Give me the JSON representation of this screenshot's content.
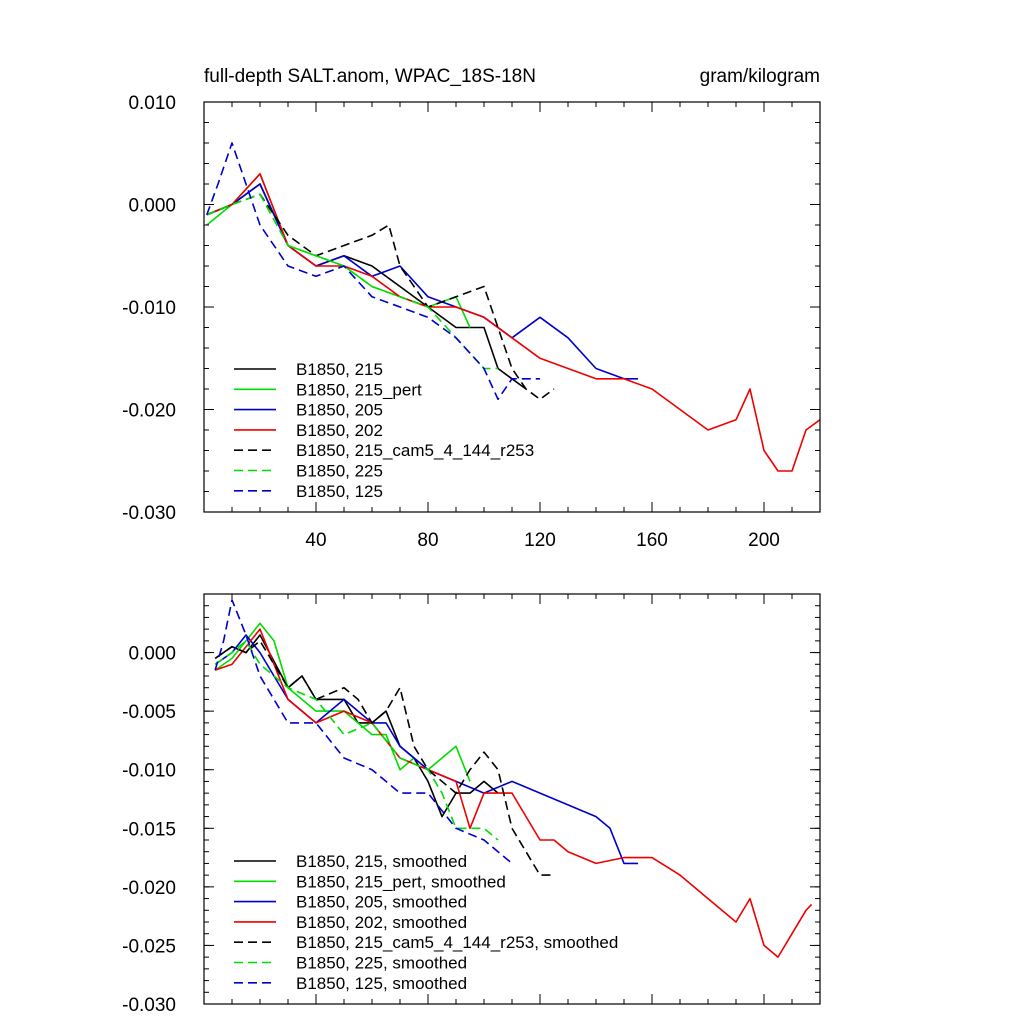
{
  "chart_data": [
    {
      "type": "line",
      "title": "full-depth SALT.anom, WPAC_18S-18N",
      "units": "gram/kilogram",
      "xlabel": "",
      "ylabel": "",
      "xlim": [
        0,
        220
      ],
      "ylim": [
        -0.03,
        0.01
      ],
      "x_ticks": [
        40,
        80,
        120,
        160,
        200
      ],
      "x_tick_labels": [
        "40",
        "80",
        "120",
        "160",
        "200"
      ],
      "y_ticks": [
        0.01,
        0.0,
        -0.01,
        -0.02,
        -0.03
      ],
      "y_tick_labels": [
        "0.010",
        "0.000",
        "-0.010",
        "-0.020",
        "-0.030"
      ],
      "legend_position": "bottom-left",
      "series": [
        {
          "name": "B1850, 215",
          "color": "#000000",
          "dash": "solid",
          "x": [
            1,
            10,
            20,
            30,
            40,
            50,
            60,
            70,
            80,
            90,
            100,
            105,
            110,
            115
          ],
          "values": [
            -0.001,
            0.0,
            0.002,
            -0.004,
            -0.006,
            -0.005,
            -0.006,
            -0.008,
            -0.01,
            -0.012,
            -0.012,
            -0.016,
            -0.017,
            -0.018
          ]
        },
        {
          "name": "B1850, 215_pert",
          "color": "#00dd00",
          "dash": "solid",
          "x": [
            1,
            10,
            20,
            30,
            40,
            50,
            60,
            70,
            80,
            90,
            95
          ],
          "values": [
            -0.002,
            0.0,
            0.003,
            -0.004,
            -0.005,
            -0.006,
            -0.008,
            -0.009,
            -0.01,
            -0.009,
            -0.012
          ]
        },
        {
          "name": "B1850, 205",
          "color": "#0000cc",
          "dash": "solid",
          "x": [
            1,
            10,
            20,
            30,
            40,
            50,
            60,
            70,
            80,
            90,
            100,
            110,
            120,
            130,
            140,
            150,
            155
          ],
          "values": [
            -0.001,
            0.0,
            0.002,
            -0.004,
            -0.006,
            -0.005,
            -0.007,
            -0.006,
            -0.009,
            -0.01,
            -0.011,
            -0.013,
            -0.011,
            -0.013,
            -0.016,
            -0.017,
            -0.017
          ]
        },
        {
          "name": "B1850, 202",
          "color": "#ee0000",
          "dash": "solid",
          "x": [
            1,
            10,
            20,
            30,
            40,
            50,
            60,
            70,
            80,
            90,
            100,
            110,
            120,
            130,
            140,
            150,
            160,
            170,
            180,
            190,
            195,
            200,
            205,
            210,
            215,
            220
          ],
          "values": [
            -0.001,
            0.0,
            0.003,
            -0.004,
            -0.006,
            -0.006,
            -0.007,
            -0.009,
            -0.01,
            -0.01,
            -0.011,
            -0.013,
            -0.015,
            -0.016,
            -0.017,
            -0.017,
            -0.018,
            -0.02,
            -0.022,
            -0.021,
            -0.018,
            -0.024,
            -0.026,
            -0.026,
            -0.022,
            -0.021
          ]
        },
        {
          "name": "B1850, 215_cam5_4_144_r253",
          "color": "#000000",
          "dash": "dashed",
          "x": [
            1,
            10,
            20,
            30,
            40,
            50,
            60,
            66,
            70,
            80,
            90,
            100,
            105,
            110,
            115,
            120,
            125
          ],
          "values": [
            -0.001,
            0.0,
            0.001,
            -0.003,
            -0.005,
            -0.004,
            -0.003,
            -0.002,
            -0.006,
            -0.01,
            -0.009,
            -0.008,
            -0.012,
            -0.016,
            -0.018,
            -0.019,
            -0.018
          ]
        },
        {
          "name": "B1850, 225",
          "color": "#00dd00",
          "dash": "dashed",
          "x": [
            1,
            10,
            20,
            30,
            40,
            50,
            60,
            70,
            80,
            90,
            100,
            105
          ],
          "values": [
            -0.001,
            0.0,
            0.001,
            -0.004,
            -0.005,
            -0.006,
            -0.008,
            -0.009,
            -0.01,
            -0.013,
            -0.016,
            -0.016
          ]
        },
        {
          "name": "B1850, 125",
          "color": "#0000cc",
          "dash": "dashed",
          "x": [
            1,
            5,
            10,
            15,
            20,
            30,
            40,
            50,
            60,
            70,
            80,
            90,
            100,
            105,
            110,
            115,
            120
          ],
          "values": [
            -0.001,
            0.002,
            0.006,
            0.002,
            -0.002,
            -0.006,
            -0.007,
            -0.006,
            -0.009,
            -0.01,
            -0.011,
            -0.013,
            -0.016,
            -0.019,
            -0.017,
            -0.017,
            -0.017
          ]
        }
      ]
    },
    {
      "type": "line",
      "title": "",
      "xlabel": "",
      "ylabel": "",
      "xlim": [
        0,
        220
      ],
      "ylim": [
        -0.03,
        0.005
      ],
      "x_ticks": [
        40,
        80,
        120,
        160,
        200
      ],
      "y_ticks": [
        0.0,
        -0.005,
        -0.01,
        -0.015,
        -0.02,
        -0.025,
        -0.03
      ],
      "y_tick_labels": [
        "0.000",
        "-0.005",
        "-0.010",
        "-0.015",
        "-0.020",
        "-0.025",
        "-0.030"
      ],
      "legend_position": "bottom-left",
      "series": [
        {
          "name": "B1850, 215, smoothed",
          "color": "#000000",
          "dash": "solid",
          "x": [
            4,
            10,
            15,
            20,
            30,
            35,
            40,
            50,
            55,
            60,
            65,
            70,
            75,
            80,
            85,
            90,
            95,
            100,
            105
          ],
          "values": [
            -0.0005,
            0.0005,
            0.0,
            0.0015,
            -0.003,
            -0.002,
            -0.004,
            -0.004,
            -0.006,
            -0.006,
            -0.005,
            -0.008,
            -0.009,
            -0.011,
            -0.014,
            -0.012,
            -0.012,
            -0.011,
            -0.012
          ]
        },
        {
          "name": "B1850, 215_pert, smoothed",
          "color": "#00dd00",
          "dash": "solid",
          "x": [
            4,
            10,
            15,
            20,
            25,
            30,
            40,
            50,
            60,
            65,
            70,
            75,
            80,
            85,
            90,
            95
          ],
          "values": [
            -0.0015,
            -0.0005,
            0.001,
            0.0025,
            0.001,
            -0.003,
            -0.005,
            -0.005,
            -0.007,
            -0.007,
            -0.01,
            -0.009,
            -0.01,
            -0.009,
            -0.008,
            -0.011
          ]
        },
        {
          "name": "B1850, 205, smoothed",
          "color": "#0000cc",
          "dash": "solid",
          "x": [
            4,
            10,
            15,
            20,
            30,
            40,
            50,
            60,
            65,
            70,
            80,
            90,
            100,
            110,
            120,
            130,
            140,
            145,
            150,
            155
          ],
          "values": [
            -0.001,
            0.0,
            0.0015,
            0.0,
            -0.004,
            -0.006,
            -0.004,
            -0.006,
            -0.006,
            -0.008,
            -0.01,
            -0.011,
            -0.012,
            -0.011,
            -0.012,
            -0.013,
            -0.014,
            -0.015,
            -0.018,
            -0.018
          ]
        },
        {
          "name": "B1850, 202, smoothed",
          "color": "#ee0000",
          "dash": "solid",
          "x": [
            4,
            10,
            15,
            20,
            30,
            40,
            50,
            60,
            70,
            80,
            90,
            95,
            100,
            110,
            120,
            125,
            130,
            140,
            150,
            160,
            170,
            180,
            190,
            195,
            200,
            205,
            210,
            215,
            217
          ],
          "values": [
            -0.0015,
            -0.001,
            0.0005,
            0.002,
            -0.004,
            -0.006,
            -0.005,
            -0.006,
            -0.009,
            -0.01,
            -0.011,
            -0.015,
            -0.012,
            -0.012,
            -0.016,
            -0.016,
            -0.017,
            -0.018,
            -0.0175,
            -0.0175,
            -0.019,
            -0.021,
            -0.023,
            -0.021,
            -0.025,
            -0.026,
            -0.024,
            -0.022,
            -0.0215
          ]
        },
        {
          "name": "B1850, 215_cam5_4_144_r253, smoothed",
          "color": "#000000",
          "dash": "dashed",
          "x": [
            4,
            10,
            15,
            20,
            30,
            35,
            40,
            50,
            55,
            60,
            65,
            70,
            75,
            80,
            90,
            95,
            100,
            105,
            110,
            115,
            120,
            125
          ],
          "values": [
            -0.0005,
            0.0005,
            0.0,
            0.001,
            -0.003,
            -0.002,
            -0.004,
            -0.003,
            -0.004,
            -0.006,
            -0.005,
            -0.003,
            -0.008,
            -0.01,
            -0.012,
            -0.01,
            -0.0085,
            -0.01,
            -0.015,
            -0.017,
            -0.019,
            -0.019
          ]
        },
        {
          "name": "B1850, 225, smoothed",
          "color": "#00dd00",
          "dash": "dashed",
          "x": [
            4,
            10,
            15,
            20,
            30,
            40,
            50,
            60,
            70,
            80,
            85,
            90,
            95,
            100,
            105
          ],
          "values": [
            -0.001,
            0.0,
            0.001,
            -0.001,
            -0.003,
            -0.004,
            -0.007,
            -0.006,
            -0.009,
            -0.01,
            -0.012,
            -0.015,
            -0.015,
            -0.015,
            -0.016
          ]
        },
        {
          "name": "B1850, 125, smoothed",
          "color": "#0000cc",
          "dash": "dashed",
          "x": [
            4,
            7,
            10,
            15,
            20,
            30,
            40,
            50,
            60,
            70,
            80,
            90,
            100,
            105,
            110
          ],
          "values": [
            -0.0015,
            0.001,
            0.0045,
            0.0015,
            -0.002,
            -0.006,
            -0.006,
            -0.009,
            -0.01,
            -0.012,
            -0.012,
            -0.015,
            -0.016,
            -0.017,
            -0.018
          ]
        }
      ]
    }
  ]
}
